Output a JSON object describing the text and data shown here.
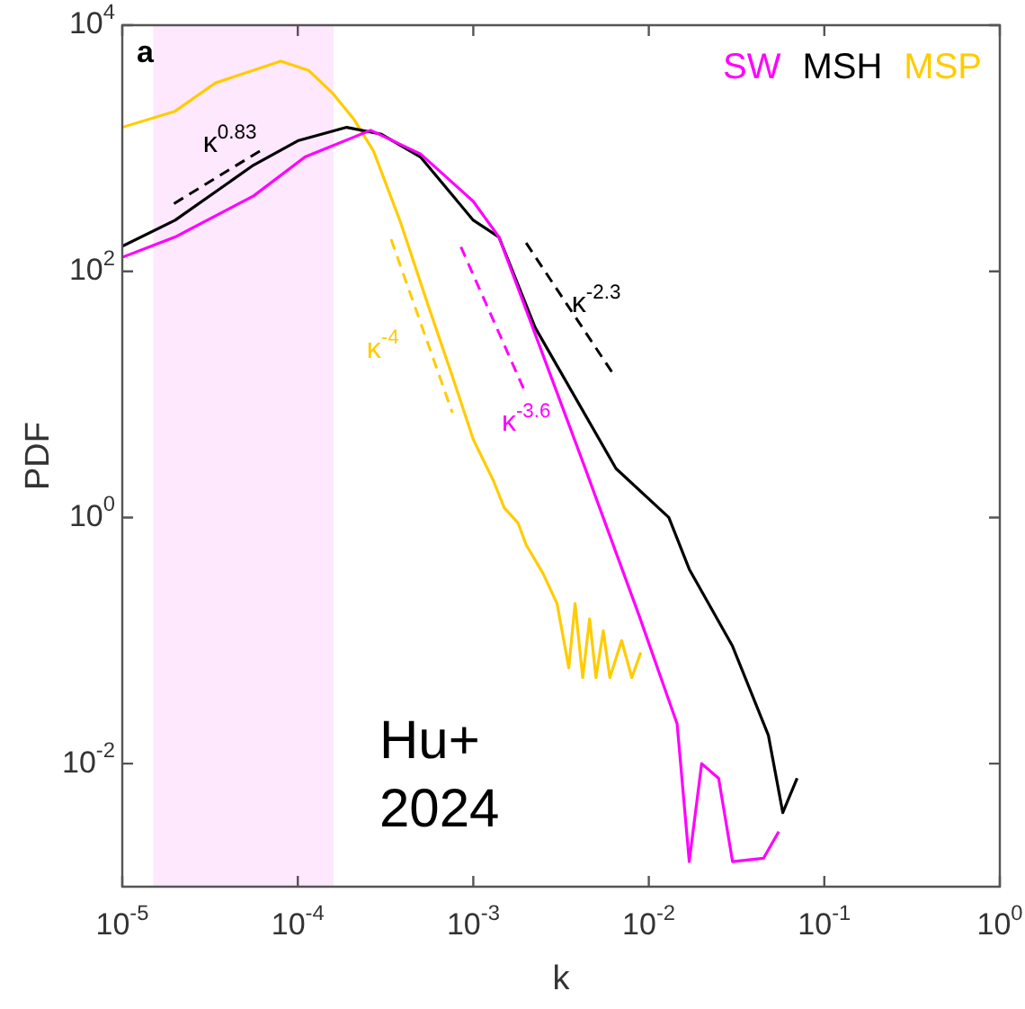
{
  "chart_data": {
    "type": "line",
    "xlabel": "k",
    "ylabel": "PDF",
    "log": "xy",
    "grid": false,
    "legend": "top right",
    "xlim": [
      1e-05,
      1
    ],
    "ylim": [
      0.001,
      10000
    ],
    "xticks": [
      {
        "value": 1e-05,
        "label": "10$^{-5}$"
      },
      {
        "value": 0.0001,
        "label": "10$^{-4}$"
      },
      {
        "value": 0.001,
        "label": "10$^{-3}$"
      },
      {
        "value": 0.01,
        "label": "10$^{-2}$"
      },
      {
        "value": 0.1,
        "label": "10$^{-1}$"
      },
      {
        "value": 1,
        "label": "10$^{0}$"
      }
    ],
    "yticks": [
      {
        "value": 0.01,
        "label": "10$^{-2}$"
      },
      {
        "value": 1,
        "label": "10$^{0}$"
      },
      {
        "value": 100,
        "label": "10$^{2}$"
      },
      {
        "value": 10000,
        "label": "10$^{4}$"
      }
    ],
    "bands": [
      {
        "axis": "x",
        "from": 1.5e-05,
        "to": 0.00016,
        "color": "#fde8fd"
      }
    ],
    "series": [
      {
        "name": "SW",
        "color": "#ff00ff",
        "x": [
          1e-05,
          2e-05,
          5.6e-05,
          0.00011,
          0.00026,
          0.0005,
          0.001,
          0.0014,
          0.0034,
          0.0043,
          0.0088,
          0.0145,
          0.017,
          0.02,
          0.025,
          0.03,
          0.045,
          0.055
        ],
        "values": [
          130,
          190,
          410,
          850,
          1400,
          900,
          370,
          190,
          6.4,
          2.6,
          0.16,
          0.021,
          0.0016,
          0.01,
          0.0076,
          0.0016,
          0.0017,
          0.0028
        ]
      },
      {
        "name": "MSH",
        "color": "#000000",
        "x": [
          1e-05,
          2e-05,
          5.6e-05,
          0.0001,
          0.00019,
          0.0003,
          0.0005,
          0.001,
          0.0014,
          0.00225,
          0.0065,
          0.013,
          0.017,
          0.03,
          0.048,
          0.058,
          0.07
        ],
        "values": [
          160,
          260,
          730,
          1150,
          1480,
          1300,
          850,
          260,
          190,
          35,
          2.5,
          1,
          0.38,
          0.09,
          0.017,
          0.004,
          0.0076
        ]
      },
      {
        "name": "MSP",
        "color": "#ffcc00",
        "x": [
          1e-05,
          2e-05,
          3.4e-05,
          8e-05,
          0.000115,
          0.000158,
          0.00021,
          0.00027,
          0.000385,
          0.00055,
          0.00076,
          0.001,
          0.0013,
          0.0015,
          0.0018,
          0.002,
          0.0025,
          0.003,
          0.0035,
          0.0038,
          0.0042,
          0.0046,
          0.005,
          0.0055,
          0.006,
          0.007,
          0.008,
          0.009
        ],
        "values": [
          1480,
          2000,
          3400,
          5100,
          4300,
          2800,
          1700,
          950,
          250,
          54,
          14,
          4.3,
          2,
          1.2,
          0.9,
          0.6,
          0.35,
          0.2,
          0.06,
          0.2,
          0.05,
          0.15,
          0.05,
          0.12,
          0.05,
          0.1,
          0.05,
          0.08
        ]
      },
      {
        "color": "#000000",
        "line_style": "dashed",
        "x": [
          1.97e-05,
          6.3e-05
        ],
        "values": [
          355,
          980
        ]
      },
      {
        "color": "#ffcc00",
        "line_style": "dashed",
        "x": [
          0.00034,
          0.00076
        ],
        "values": [
          182,
          7.1
        ]
      },
      {
        "color": "#ff00ff",
        "line_style": "dashed",
        "x": [
          0.00085,
          0.002
        ],
        "values": [
          158,
          10
        ]
      },
      {
        "color": "#000000",
        "line_style": "dashed",
        "x": [
          0.002,
          0.0063
        ],
        "values": [
          170,
          14.5
        ]
      }
    ],
    "annotations": [
      "a",
      "Hu+ 2024",
      {
        "text": "κ$^{0.83}$",
        "x": 4.1e-05,
        "y": 673
      },
      {
        "text": "κ$^{-4}$",
        "x": 0.0005,
        "y": 37
      },
      {
        "text": "κ$^{-3.6}$",
        "x": 0.002,
        "y": 10
      },
      {
        "text": "κ$^{-2.3}$",
        "x": 0.00274,
        "y": 86
      }
    ]
  }
}
